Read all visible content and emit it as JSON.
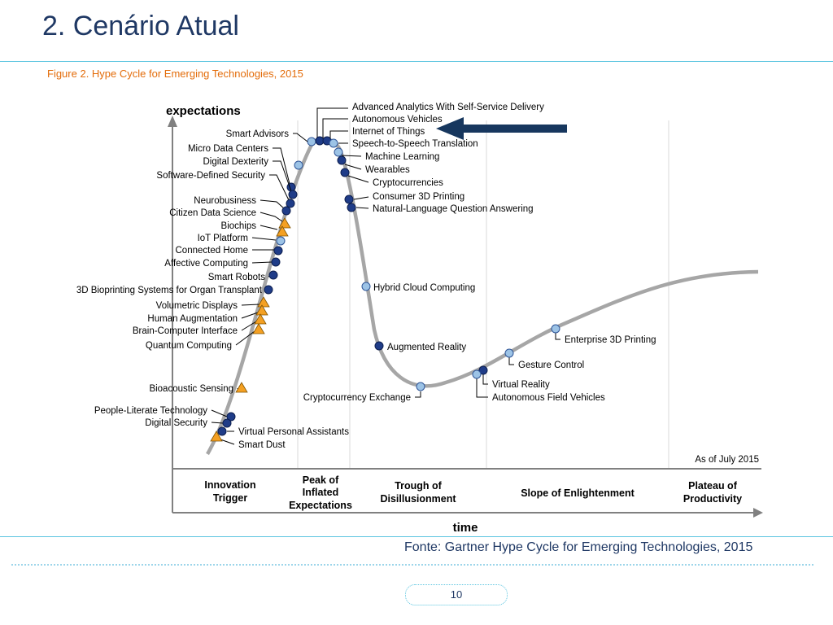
{
  "slide": {
    "title": "2. Cenário Atual",
    "figure_caption": "Figure 2. Hype Cycle for Emerging Technologies, 2015",
    "source": "Fonte:  Gartner Hype Cycle for Emerging Technologies, 2015",
    "page_number": "10"
  },
  "colors": {
    "title": "#1f3864",
    "caption": "#e36c0a",
    "accent_rule": "#5bc5e0",
    "curve": "#a6a6a6",
    "dark_marker": "#1f3c88",
    "light_marker": "#9cc3e6",
    "triangle_marker": "#f4a022",
    "arrow": "#17375e"
  },
  "legend": {
    "triangle": "Triangle marker",
    "dark_circle": "Dark circle marker",
    "light_circle": "Light circle marker"
  },
  "diagram": {
    "y_axis_label": "expectations",
    "x_axis_label": "time",
    "as_of": "As of July 2015",
    "phases": [
      [
        "Innovation",
        "Trigger"
      ],
      [
        "Peak of",
        "Inflated",
        "Expectations"
      ],
      [
        "Trough of",
        "Disillusionment"
      ],
      [
        "Slope of Enlightenment"
      ],
      [
        "Plateau of",
        "Productivity"
      ]
    ],
    "technologies": [
      {
        "label": "Advanced Analytics With Self-Service Delivery",
        "phase": "Peak of Inflated Expectations",
        "marker": "light_circle"
      },
      {
        "label": "Autonomous Vehicles",
        "phase": "Peak of Inflated Expectations",
        "marker": "dark_circle"
      },
      {
        "label": "Internet of Things",
        "phase": "Peak of Inflated Expectations",
        "marker": "dark_circle"
      },
      {
        "label": "Speech-to-Speech Translation",
        "phase": "Peak of Inflated Expectations",
        "marker": "light_circle"
      },
      {
        "label": "Machine Learning",
        "phase": "Peak of Inflated Expectations",
        "marker": "light_circle"
      },
      {
        "label": "Wearables",
        "phase": "Peak of Inflated Expectations",
        "marker": "dark_circle"
      },
      {
        "label": "Cryptocurrencies",
        "phase": "Peak of Inflated Expectations",
        "marker": "dark_circle"
      },
      {
        "label": "Consumer 3D Printing",
        "phase": "Peak of Inflated Expectations",
        "marker": "dark_circle"
      },
      {
        "label": "Natural-Language Question Answering",
        "phase": "Peak of Inflated Expectations",
        "marker": "dark_circle"
      },
      {
        "label": "Smart Advisors",
        "phase": "Innovation Trigger",
        "marker": "light_circle"
      },
      {
        "label": "Micro Data Centers",
        "phase": "Innovation Trigger",
        "marker": "dark_circle"
      },
      {
        "label": "Digital Dexterity",
        "phase": "Innovation Trigger",
        "marker": "dark_circle"
      },
      {
        "label": "Software-Defined Security",
        "phase": "Innovation Trigger",
        "marker": "dark_circle"
      },
      {
        "label": "Neurobusiness",
        "phase": "Innovation Trigger",
        "marker": "dark_circle"
      },
      {
        "label": "Citizen Data Science",
        "phase": "Innovation Trigger",
        "marker": "triangle"
      },
      {
        "label": "Biochips",
        "phase": "Innovation Trigger",
        "marker": "triangle"
      },
      {
        "label": "IoT Platform",
        "phase": "Innovation Trigger",
        "marker": "light_circle"
      },
      {
        "label": "Connected Home",
        "phase": "Innovation Trigger",
        "marker": "dark_circle"
      },
      {
        "label": "Affective Computing",
        "phase": "Innovation Trigger",
        "marker": "dark_circle"
      },
      {
        "label": "Smart Robots",
        "phase": "Innovation Trigger",
        "marker": "dark_circle"
      },
      {
        "label": "3D Bioprinting Systems for Organ Transplant",
        "phase": "Innovation Trigger",
        "marker": "dark_circle"
      },
      {
        "label": "Volumetric Displays",
        "phase": "Innovation Trigger",
        "marker": "triangle"
      },
      {
        "label": "Human Augmentation",
        "phase": "Innovation Trigger",
        "marker": "triangle"
      },
      {
        "label": "Brain-Computer Interface",
        "phase": "Innovation Trigger",
        "marker": "triangle"
      },
      {
        "label": "Quantum Computing",
        "phase": "Innovation Trigger",
        "marker": "triangle"
      },
      {
        "label": "Bioacoustic Sensing",
        "phase": "Innovation Trigger",
        "marker": "triangle"
      },
      {
        "label": "People-Literate Technology",
        "phase": "Innovation Trigger",
        "marker": "dark_circle"
      },
      {
        "label": "Digital Security",
        "phase": "Innovation Trigger",
        "marker": "dark_circle"
      },
      {
        "label": "Virtual Personal Assistants",
        "phase": "Innovation Trigger",
        "marker": "dark_circle"
      },
      {
        "label": "Smart Dust",
        "phase": "Innovation Trigger",
        "marker": "triangle"
      },
      {
        "label": "Hybrid Cloud Computing",
        "phase": "Trough of Disillusionment",
        "marker": "light_circle"
      },
      {
        "label": "Augmented Reality",
        "phase": "Trough of Disillusionment",
        "marker": "dark_circle"
      },
      {
        "label": "Cryptocurrency Exchange",
        "phase": "Trough of Disillusionment",
        "marker": "light_circle"
      },
      {
        "label": "Virtual Reality",
        "phase": "Slope of Enlightenment",
        "marker": "dark_circle"
      },
      {
        "label": "Autonomous Field Vehicles",
        "phase": "Slope of Enlightenment",
        "marker": "light_circle"
      },
      {
        "label": "Gesture Control",
        "phase": "Slope of Enlightenment",
        "marker": "light_circle"
      },
      {
        "label": "Enterprise 3D Printing",
        "phase": "Slope of Enlightenment",
        "marker": "light_circle"
      }
    ],
    "highlight": {
      "technology": "Internet of Things",
      "shape": "arrow"
    }
  }
}
